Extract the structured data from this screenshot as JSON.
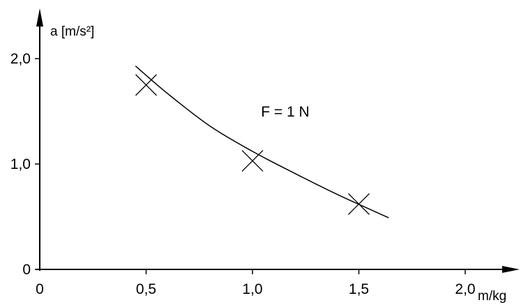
{
  "chart_data": {
    "type": "scatter",
    "title": "",
    "xlabel": "m/kg",
    "ylabel": "a [m/s²]",
    "xlim": [
      0,
      2.2
    ],
    "ylim": [
      0,
      2.3
    ],
    "x_ticks": [
      {
        "value": 0.5,
        "label": "0,5"
      },
      {
        "value": 1.0,
        "label": "1,0"
      },
      {
        "value": 1.5,
        "label": "1,5"
      },
      {
        "value": 2.0,
        "label": "2,0"
      }
    ],
    "x_origin_label": "0",
    "y_ticks": [
      {
        "value": 0,
        "label": "0"
      },
      {
        "value": 1.0,
        "label": "1,0"
      },
      {
        "value": 2.0,
        "label": "2,0"
      }
    ],
    "grid": false,
    "series": [
      {
        "marker": "cross",
        "points": [
          {
            "x": 0.5,
            "y": 1.75
          },
          {
            "x": 1.0,
            "y": 1.03
          },
          {
            "x": 1.5,
            "y": 0.62
          }
        ]
      }
    ],
    "fit_curve": {
      "x": [
        0.45,
        0.6,
        0.8,
        1.0,
        1.2,
        1.4,
        1.64
      ],
      "y": [
        1.93,
        1.67,
        1.36,
        1.12,
        0.91,
        0.71,
        0.49
      ]
    },
    "annotations": [
      {
        "text": "F = 1 N",
        "x": 1.04,
        "y": 1.45
      }
    ],
    "colors": {
      "ink": "#000000",
      "background": "#ffffff"
    }
  }
}
